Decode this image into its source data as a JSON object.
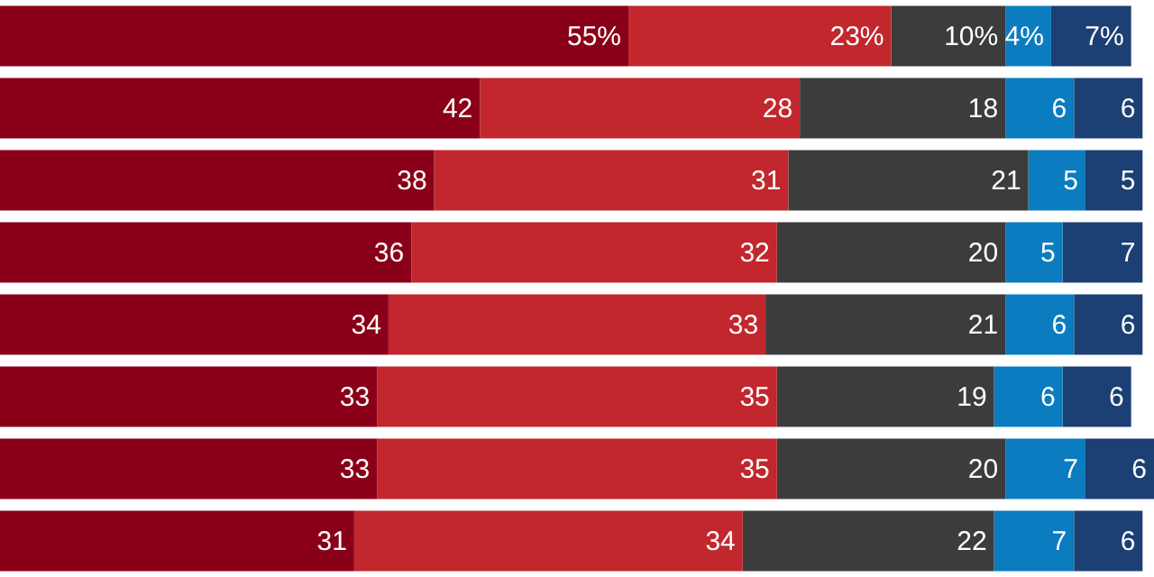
{
  "chart_data": {
    "type": "bar",
    "orientation": "horizontal",
    "stacked": true,
    "categories": [
      null,
      null,
      null,
      null,
      null,
      null,
      null,
      null
    ],
    "xlim": [
      0,
      101
    ],
    "tick_labels": false,
    "grid": false,
    "legend": false,
    "series": [
      {
        "color": "#8a0019",
        "values": [
          55,
          42,
          38,
          36,
          34,
          33,
          33,
          31
        ],
        "value_labels": [
          "55%",
          "42",
          "38",
          "36",
          "34",
          "33",
          "33",
          "31"
        ]
      },
      {
        "color": "#c1272d",
        "values": [
          23,
          28,
          31,
          32,
          33,
          35,
          35,
          34
        ],
        "value_labels": [
          "23%",
          "28",
          "31",
          "32",
          "33",
          "35",
          "35",
          "34"
        ]
      },
      {
        "color": "#3c3c3c",
        "values": [
          10,
          18,
          21,
          20,
          21,
          19,
          20,
          22
        ],
        "value_labels": [
          "10%",
          "18",
          "21",
          "20",
          "21",
          "19",
          "20",
          "22"
        ]
      },
      {
        "color": "#0b7cc0",
        "values": [
          4,
          6,
          5,
          5,
          6,
          6,
          7,
          7
        ],
        "value_labels": [
          "4%",
          "6",
          "5",
          "5",
          "6",
          "6",
          "7",
          "7"
        ]
      },
      {
        "color": "#1c3f74",
        "values": [
          7,
          6,
          5,
          7,
          6,
          6,
          6,
          6
        ],
        "value_labels": [
          "7%",
          "6",
          "5",
          "7",
          "6",
          "6",
          "6",
          "6"
        ]
      }
    ]
  }
}
